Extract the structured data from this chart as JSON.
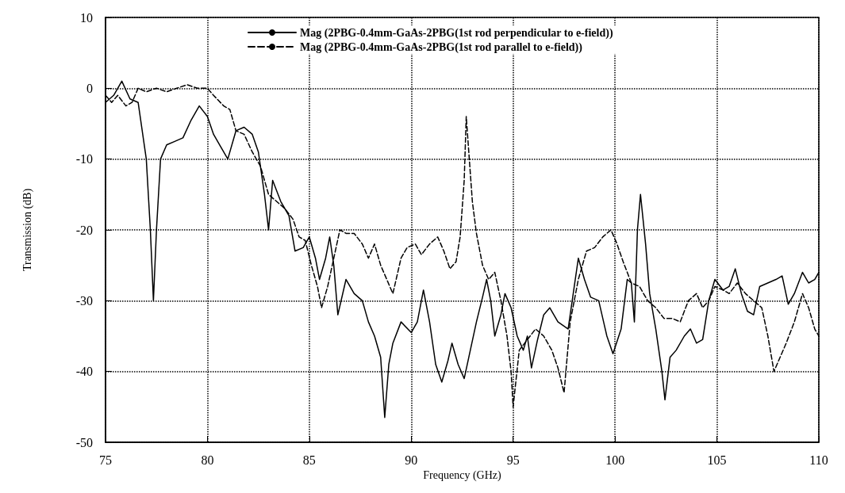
{
  "chart_data": {
    "type": "line",
    "xlabel": "Frequency (GHz)",
    "ylabel": "Transmission (dB)",
    "xlim": [
      75,
      110
    ],
    "xticks": [
      75,
      80,
      85,
      90,
      95,
      100,
      105,
      110
    ],
    "ylim": [
      -50,
      10
    ],
    "yticks": [
      -50,
      -40,
      -30,
      -20,
      -10,
      0,
      10
    ],
    "grid": true,
    "legend": "top",
    "marker": "none",
    "series": [
      {
        "name": "Mag (2PBG-0.4mm-GaAs-2PBG(1st rod perpendicular to e-field))",
        "color": "#000000",
        "line_style": "solid",
        "x": [
          75,
          75.4,
          75.8,
          76.2,
          76.6,
          77,
          77.2,
          77.35,
          77.5,
          77.7,
          78,
          78.4,
          78.8,
          79.2,
          79.6,
          80,
          80.3,
          80.6,
          81,
          81.4,
          81.8,
          82.2,
          82.5,
          82.8,
          83,
          83.2,
          83.6,
          84,
          84.3,
          84.7,
          85,
          85.3,
          85.5,
          85.8,
          86,
          86.2,
          86.4,
          86.8,
          87.2,
          87.6,
          87.9,
          88.2,
          88.5,
          88.7,
          88.9,
          89.1,
          89.5,
          90,
          90.3,
          90.6,
          90.9,
          91.2,
          91.5,
          91.8,
          92,
          92.3,
          92.6,
          92.9,
          93.2,
          93.5,
          93.7,
          93.9,
          94.1,
          94.4,
          94.6,
          94.9,
          95.2,
          95.5,
          95.7,
          95.9,
          96.2,
          96.5,
          96.8,
          97.2,
          97.7,
          98,
          98.2,
          98.5,
          98.8,
          99.2,
          99.6,
          99.9,
          100.3,
          100.6,
          100.8,
          100.95,
          101.1,
          101.25,
          101.5,
          101.7,
          102,
          102.3,
          102.45,
          102.7,
          103,
          103.4,
          103.7,
          104,
          104.3,
          104.6,
          104.9,
          105.3,
          105.6,
          105.9,
          106.2,
          106.5,
          106.8,
          107.1,
          107.5,
          107.9,
          108.2,
          108.5,
          108.8,
          109.2,
          109.5,
          109.8,
          110
        ],
        "values": [
          -2,
          -1,
          1,
          -1.5,
          -2,
          -10,
          -20,
          -30,
          -20,
          -10,
          -8,
          -7.5,
          -7,
          -4.5,
          -2.5,
          -4,
          -6.5,
          -8,
          -10,
          -6,
          -5.5,
          -6.5,
          -9,
          -15,
          -20,
          -13,
          -16,
          -18,
          -23,
          -22.5,
          -21,
          -24,
          -27,
          -24,
          -21,
          -25,
          -32,
          -27,
          -29,
          -30,
          -33,
          -35,
          -38,
          -46.5,
          -39,
          -36,
          -33,
          -34.5,
          -33,
          -28.5,
          -33,
          -39,
          -41.5,
          -38.5,
          -36,
          -39,
          -41,
          -37,
          -33,
          -29.5,
          -27,
          -30,
          -35,
          -32,
          -29,
          -31,
          -35,
          -37,
          -35,
          -39.5,
          -35.5,
          -32,
          -31,
          -33,
          -34,
          -28,
          -24,
          -27,
          -29.5,
          -30,
          -35,
          -37.5,
          -34,
          -27,
          -27.5,
          -33,
          -20,
          -15,
          -22,
          -29,
          -34,
          -40,
          -44,
          -38,
          -37,
          -35,
          -34,
          -36,
          -35.5,
          -30,
          -27,
          -28.5,
          -28,
          -25.5,
          -29,
          -31.5,
          -32,
          -28,
          -27.5,
          -27,
          -26.5,
          -30.5,
          -29,
          -26,
          -27.5,
          -27,
          -26
        ]
      },
      {
        "name": "Mag (2PBG-0.4mm-GaAs-2PBG(1st rod parallel to e-field))",
        "color": "#000000",
        "line_style": "dashed",
        "x": [
          75,
          75.3,
          75.6,
          76,
          76.3,
          76.6,
          77,
          77.5,
          78,
          78.5,
          79,
          79.5,
          80,
          80.3,
          80.8,
          81.1,
          81.4,
          81.8,
          82.2,
          82.6,
          83,
          83.4,
          83.8,
          84.2,
          84.5,
          84.8,
          85.1,
          85.4,
          85.6,
          85.9,
          86.2,
          86.5,
          86.8,
          87.2,
          87.6,
          87.9,
          88.2,
          88.5,
          88.8,
          89.1,
          89.5,
          89.8,
          90.2,
          90.5,
          90.9,
          91.3,
          91.6,
          91.9,
          92.2,
          92.4,
          92.6,
          92.7,
          92.85,
          93,
          93.2,
          93.5,
          93.8,
          94.1,
          94.4,
          94.7,
          94.9,
          95,
          95.3,
          95.7,
          96.1,
          96.5,
          96.9,
          97.2,
          97.5,
          97.8,
          98.2,
          98.6,
          99,
          99.4,
          99.8,
          100.1,
          100.4,
          100.8,
          101.2,
          101.6,
          102,
          102.4,
          102.8,
          103.2,
          103.6,
          104,
          104.3,
          104.6,
          104.9,
          105.3,
          105.6,
          106,
          106.4,
          106.8,
          107.2,
          107.5,
          107.8,
          108.1,
          108.4,
          108.8,
          109.2,
          109.5,
          109.8,
          110
        ],
        "values": [
          -1,
          -2,
          -1,
          -2.5,
          -2,
          0,
          -0.5,
          0,
          -0.5,
          0,
          0.5,
          0,
          0,
          -1,
          -2.5,
          -3,
          -6,
          -6.5,
          -9,
          -11,
          -15,
          -16,
          -17,
          -18.5,
          -21,
          -21.5,
          -25,
          -28,
          -31,
          -28,
          -24,
          -20,
          -20.5,
          -20.5,
          -22,
          -24,
          -22,
          -25,
          -27,
          -29,
          -24,
          -22.5,
          -22,
          -23.5,
          -22,
          -21,
          -23,
          -25.5,
          -24.5,
          -21,
          -13,
          -4,
          -10,
          -16,
          -20.5,
          -25,
          -27,
          -26,
          -30,
          -35,
          -40,
          -45,
          -37,
          -35.5,
          -34,
          -35,
          -37,
          -39.5,
          -43,
          -33,
          -27,
          -23,
          -22.5,
          -21,
          -20,
          -22,
          -24.5,
          -27.5,
          -28,
          -30,
          -31,
          -32.5,
          -32.5,
          -33,
          -30,
          -29,
          -31,
          -30,
          -28,
          -28.5,
          -29,
          -27.5,
          -29,
          -30,
          -31,
          -35,
          -40,
          -38,
          -36,
          -33,
          -29,
          -31,
          -34,
          -35
        ]
      }
    ]
  }
}
